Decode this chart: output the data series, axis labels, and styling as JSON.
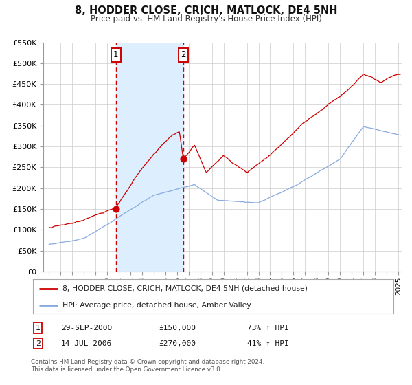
{
  "title": "8, HODDER CLOSE, CRICH, MATLOCK, DE4 5NH",
  "subtitle": "Price paid vs. HM Land Registry's House Price Index (HPI)",
  "background_color": "#ffffff",
  "plot_bg_color": "#ffffff",
  "grid_color": "#cccccc",
  "ylim": [
    0,
    550000
  ],
  "yticks": [
    0,
    50000,
    100000,
    150000,
    200000,
    250000,
    300000,
    350000,
    400000,
    450000,
    500000,
    550000
  ],
  "ytick_labels": [
    "£0",
    "£50K",
    "£100K",
    "£150K",
    "£200K",
    "£250K",
    "£300K",
    "£350K",
    "£400K",
    "£450K",
    "£500K",
    "£550K"
  ],
  "xlim_start": 1994.5,
  "xlim_end": 2025.3,
  "transaction1_date": 2000.747,
  "transaction1_price": 150000,
  "transaction1_label": "29-SEP-2000",
  "transaction1_hpi": "73% ↑ HPI",
  "transaction2_date": 2006.536,
  "transaction2_price": 270000,
  "transaction2_label": "14-JUL-2006",
  "transaction2_hpi": "41% ↑ HPI",
  "shade_color": "#ddeeff",
  "dashed_line_color": "#cc0000",
  "red_line_color": "#cc0000",
  "blue_line_color": "#88aadd",
  "marker_color": "#cc0000",
  "legend_label_red": "8, HODDER CLOSE, CRICH, MATLOCK, DE4 5NH (detached house)",
  "legend_label_blue": "HPI: Average price, detached house, Amber Valley",
  "footnote1": "Contains HM Land Registry data © Crown copyright and database right 2024.",
  "footnote2": "This data is licensed under the Open Government Licence v3.0.",
  "xtick_years": [
    1995,
    1996,
    1997,
    1998,
    1999,
    2000,
    2001,
    2002,
    2003,
    2004,
    2005,
    2006,
    2007,
    2008,
    2009,
    2010,
    2011,
    2012,
    2013,
    2014,
    2015,
    2016,
    2017,
    2018,
    2019,
    2020,
    2021,
    2022,
    2023,
    2024,
    2025
  ]
}
